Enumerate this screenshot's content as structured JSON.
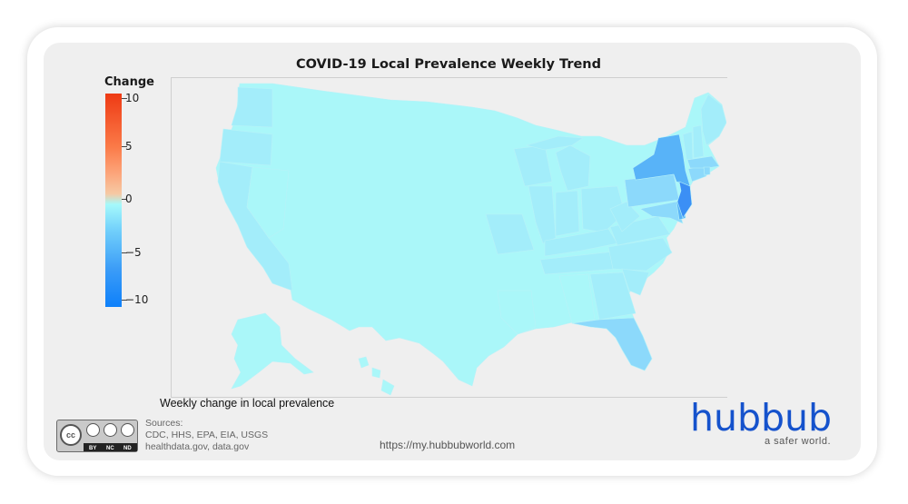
{
  "title": "COVID-19 Local Prevalence Weekly Trend",
  "legend": {
    "title": "Change",
    "ticks": [
      "10",
      "5",
      "0",
      "−5",
      "−10"
    ],
    "range": [
      -10,
      10
    ],
    "colors": {
      "high": "#ee3a14",
      "mid": "#a5f9fb",
      "low": "#0e80fa"
    }
  },
  "caption": "Weekly change in local prevalence",
  "sources": {
    "heading": "Sources:",
    "line1": "CDC, HHS, EPA, EIA, USGS",
    "line2": "healthdata.gov, data.gov"
  },
  "license": {
    "tags": [
      "BY",
      "NC",
      "ND"
    ],
    "badge": "cc"
  },
  "url": "https://my.hubbubworld.com",
  "brand": {
    "name": "hubbub",
    "tagline": "a safer world.",
    "color": "#1552cc"
  },
  "map_fills": {
    "base": "#aaf7f9",
    "light": "#a3edfa",
    "medium": "#8cd9fb",
    "strong": "#58b3f8",
    "darkest": "#3b8ff5"
  }
}
